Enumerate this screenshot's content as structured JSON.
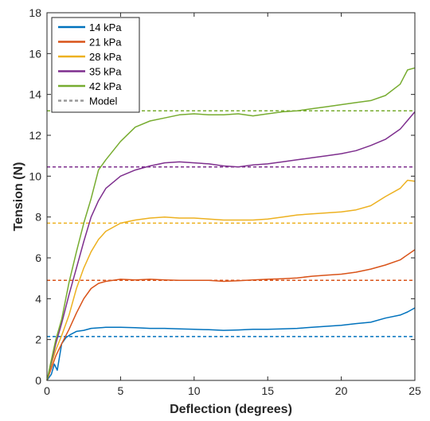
{
  "chart_data": {
    "type": "line",
    "title": "",
    "xlabel": "Deflection (degrees)",
    "ylabel": "Tension (N)",
    "xlim": [
      0,
      25
    ],
    "ylim": [
      0,
      18
    ],
    "xticks": [
      0,
      5,
      10,
      15,
      20,
      25
    ],
    "yticks": [
      0,
      2,
      4,
      6,
      8,
      10,
      12,
      14,
      16,
      18
    ],
    "grid": false,
    "legend_position": "top-left",
    "series": [
      {
        "name": "14 kPa",
        "color": "#0072BD",
        "points": [
          [
            0,
            0
          ],
          [
            0.3,
            0.3
          ],
          [
            0.5,
            0.8
          ],
          [
            0.7,
            0.5
          ],
          [
            1.0,
            1.8
          ],
          [
            1.3,
            2.1
          ],
          [
            1.6,
            2.25
          ],
          [
            2.0,
            2.4
          ],
          [
            2.5,
            2.45
          ],
          [
            3.0,
            2.55
          ],
          [
            4.0,
            2.6
          ],
          [
            5.0,
            2.6
          ],
          [
            6.0,
            2.58
          ],
          [
            7.0,
            2.55
          ],
          [
            8.0,
            2.55
          ],
          [
            9.0,
            2.52
          ],
          [
            10.0,
            2.5
          ],
          [
            11.0,
            2.48
          ],
          [
            12.0,
            2.45
          ],
          [
            13.0,
            2.47
          ],
          [
            14.0,
            2.5
          ],
          [
            15.0,
            2.5
          ],
          [
            16.0,
            2.52
          ],
          [
            17.0,
            2.55
          ],
          [
            18.0,
            2.6
          ],
          [
            19.0,
            2.65
          ],
          [
            20.0,
            2.7
          ],
          [
            21.0,
            2.78
          ],
          [
            22.0,
            2.85
          ],
          [
            23.0,
            3.05
          ],
          [
            24.0,
            3.2
          ],
          [
            24.5,
            3.35
          ],
          [
            25.0,
            3.55
          ]
        ]
      },
      {
        "name": "21 kPa",
        "color": "#D95319",
        "points": [
          [
            0,
            0
          ],
          [
            0.3,
            0.6
          ],
          [
            0.6,
            1.2
          ],
          [
            1.0,
            1.8
          ],
          [
            1.5,
            2.5
          ],
          [
            2.0,
            3.3
          ],
          [
            2.5,
            4.0
          ],
          [
            3.0,
            4.5
          ],
          [
            3.5,
            4.75
          ],
          [
            4.0,
            4.85
          ],
          [
            5.0,
            4.95
          ],
          [
            6.0,
            4.92
          ],
          [
            7.0,
            4.95
          ],
          [
            8.0,
            4.92
          ],
          [
            9.0,
            4.9
          ],
          [
            10.0,
            4.9
          ],
          [
            11.0,
            4.9
          ],
          [
            12.0,
            4.85
          ],
          [
            13.0,
            4.88
          ],
          [
            14.0,
            4.92
          ],
          [
            15.0,
            4.95
          ],
          [
            16.0,
            4.98
          ],
          [
            17.0,
            5.02
          ],
          [
            18.0,
            5.1
          ],
          [
            19.0,
            5.15
          ],
          [
            20.0,
            5.2
          ],
          [
            21.0,
            5.3
          ],
          [
            22.0,
            5.45
          ],
          [
            23.0,
            5.65
          ],
          [
            24.0,
            5.9
          ],
          [
            25.0,
            6.4
          ]
        ]
      },
      {
        "name": "28 kPa",
        "color": "#EDB120",
        "points": [
          [
            0,
            0
          ],
          [
            0.3,
            0.8
          ],
          [
            0.6,
            1.5
          ],
          [
            1.0,
            2.2
          ],
          [
            1.5,
            3.2
          ],
          [
            2.0,
            4.5
          ],
          [
            2.5,
            5.5
          ],
          [
            3.0,
            6.3
          ],
          [
            3.5,
            6.9
          ],
          [
            4.0,
            7.3
          ],
          [
            5.0,
            7.7
          ],
          [
            6.0,
            7.85
          ],
          [
            7.0,
            7.95
          ],
          [
            8.0,
            8.0
          ],
          [
            9.0,
            7.95
          ],
          [
            10.0,
            7.95
          ],
          [
            11.0,
            7.9
          ],
          [
            12.0,
            7.85
          ],
          [
            13.0,
            7.85
          ],
          [
            14.0,
            7.85
          ],
          [
            15.0,
            7.9
          ],
          [
            16.0,
            8.0
          ],
          [
            17.0,
            8.1
          ],
          [
            18.0,
            8.15
          ],
          [
            19.0,
            8.2
          ],
          [
            20.0,
            8.25
          ],
          [
            21.0,
            8.35
          ],
          [
            22.0,
            8.55
          ],
          [
            23.0,
            9.0
          ],
          [
            24.0,
            9.4
          ],
          [
            24.5,
            9.8
          ],
          [
            25.0,
            9.75
          ]
        ]
      },
      {
        "name": "35 kPa",
        "color": "#7E2F8E",
        "points": [
          [
            0,
            0
          ],
          [
            0.3,
            0.9
          ],
          [
            0.6,
            1.8
          ],
          [
            1.0,
            2.8
          ],
          [
            1.5,
            4.2
          ],
          [
            2.0,
            5.5
          ],
          [
            2.5,
            6.8
          ],
          [
            3.0,
            8.0
          ],
          [
            3.5,
            8.8
          ],
          [
            4.0,
            9.4
          ],
          [
            5.0,
            10.0
          ],
          [
            6.0,
            10.3
          ],
          [
            7.0,
            10.5
          ],
          [
            8.0,
            10.65
          ],
          [
            9.0,
            10.7
          ],
          [
            10.0,
            10.65
          ],
          [
            11.0,
            10.6
          ],
          [
            12.0,
            10.5
          ],
          [
            13.0,
            10.45
          ],
          [
            14.0,
            10.55
          ],
          [
            15.0,
            10.6
          ],
          [
            16.0,
            10.7
          ],
          [
            17.0,
            10.8
          ],
          [
            18.0,
            10.9
          ],
          [
            19.0,
            11.0
          ],
          [
            20.0,
            11.1
          ],
          [
            21.0,
            11.25
          ],
          [
            22.0,
            11.5
          ],
          [
            23.0,
            11.8
          ],
          [
            24.0,
            12.3
          ],
          [
            25.0,
            13.15
          ]
        ]
      },
      {
        "name": "42 kPa",
        "color": "#77AC30",
        "points": [
          [
            0,
            0
          ],
          [
            0.3,
            1.0
          ],
          [
            0.6,
            2.0
          ],
          [
            1.0,
            3.0
          ],
          [
            1.5,
            4.8
          ],
          [
            2.0,
            6.3
          ],
          [
            2.5,
            7.7
          ],
          [
            3.0,
            8.9
          ],
          [
            3.5,
            10.3
          ],
          [
            4.0,
            10.8
          ],
          [
            5.0,
            11.7
          ],
          [
            6.0,
            12.4
          ],
          [
            7.0,
            12.7
          ],
          [
            8.0,
            12.85
          ],
          [
            9.0,
            13.0
          ],
          [
            10.0,
            13.05
          ],
          [
            11.0,
            13.0
          ],
          [
            12.0,
            13.0
          ],
          [
            13.0,
            13.05
          ],
          [
            14.0,
            12.95
          ],
          [
            15.0,
            13.05
          ],
          [
            16.0,
            13.15
          ],
          [
            17.0,
            13.2
          ],
          [
            18.0,
            13.3
          ],
          [
            19.0,
            13.4
          ],
          [
            20.0,
            13.5
          ],
          [
            21.0,
            13.6
          ],
          [
            22.0,
            13.7
          ],
          [
            23.0,
            13.95
          ],
          [
            24.0,
            14.5
          ],
          [
            24.5,
            15.2
          ],
          [
            25.0,
            15.3
          ]
        ]
      },
      {
        "name": "Model",
        "color": "#999999",
        "style": "dashed",
        "legend_only": true
      }
    ],
    "model_lines": [
      {
        "y": 2.15,
        "color": "#0072BD"
      },
      {
        "y": 4.9,
        "color": "#D95319"
      },
      {
        "y": 7.7,
        "color": "#EDB120"
      },
      {
        "y": 10.45,
        "color": "#7E2F8E"
      },
      {
        "y": 13.2,
        "color": "#77AC30"
      }
    ]
  }
}
